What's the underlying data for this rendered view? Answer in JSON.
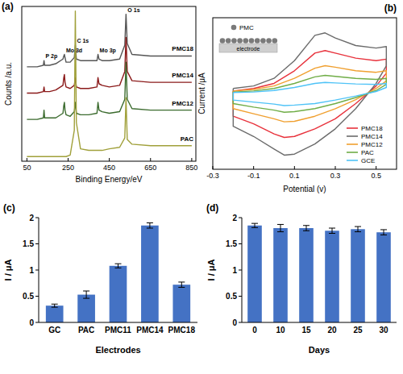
{
  "chart_data": [
    {
      "type": "line",
      "title": "(a)",
      "xlabel": "Binding Energy/eV",
      "ylabel": "Counts /a.u.",
      "x": [
        50,
        100,
        130,
        133,
        136,
        160,
        190,
        225,
        229,
        232,
        235,
        240,
        260,
        280,
        285,
        290,
        310,
        350,
        390,
        395,
        400,
        415,
        450,
        500,
        525,
        531,
        537,
        560,
        650,
        750,
        850
      ],
      "xlim": [
        25,
        870
      ],
      "xticks": [
        50,
        250,
        450,
        650,
        850
      ],
      "ylim": [
        0,
        100
      ],
      "yticks": [],
      "tick_labels": "x",
      "annotations": [
        {
          "text": "P 2p",
          "x": 133
        },
        {
          "text": "Mo 3d",
          "x": 232
        },
        {
          "text": "C 1s",
          "x": 285
        },
        {
          "text": "Mo 3p",
          "x": 395
        },
        {
          "text": "O 1s",
          "x": 531
        }
      ],
      "series": [
        {
          "name": "PMC18",
          "color": "#555555",
          "values": [
            61,
            61,
            62,
            65,
            62,
            62,
            63,
            66,
            68,
            69,
            67,
            64,
            64,
            67,
            75,
            66,
            65,
            65,
            65,
            69,
            66,
            65,
            65,
            66,
            75,
            95,
            76,
            69,
            68,
            68,
            68
          ]
        },
        {
          "name": "PMC14",
          "color": "#8b1a1a",
          "values": [
            44,
            44,
            45,
            48,
            45,
            45,
            46,
            49,
            54,
            56,
            51,
            48,
            47,
            49,
            54,
            48,
            47,
            47,
            48,
            54,
            50,
            49,
            48,
            49,
            58,
            80,
            58,
            52,
            51,
            51,
            51
          ]
        },
        {
          "name": "PMC12",
          "color": "#3b6b2e",
          "values": [
            27,
            27,
            28,
            33,
            28,
            28,
            28,
            31,
            36,
            38,
            33,
            30,
            29,
            32,
            38,
            31,
            30,
            30,
            31,
            38,
            33,
            32,
            31,
            32,
            40,
            64,
            40,
            34,
            33,
            33,
            33
          ]
        },
        {
          "name": "PAC",
          "color": "#a0a03a",
          "values": [
            3,
            3,
            3,
            3,
            3,
            3,
            3,
            3,
            3,
            3,
            3,
            3,
            4,
            20,
            97,
            25,
            8,
            7,
            7,
            7,
            7,
            7,
            8,
            9,
            15,
            41,
            14,
            11,
            10,
            10,
            10
          ]
        }
      ]
    },
    {
      "type": "line",
      "title": "(b)",
      "xlabel": "Potential (v)",
      "ylabel": "Current /μA",
      "x": [
        -0.2,
        -0.1,
        0,
        0.1,
        0.2,
        0.25,
        0.3,
        0.4,
        0.5,
        0.55,
        0.55,
        0.5,
        0.4,
        0.3,
        0.2,
        0.1,
        0.05,
        0,
        -0.1,
        -0.2,
        -0.2
      ],
      "xlim": [
        -0.3,
        0.6
      ],
      "xticks": [
        -0.3,
        -0.1,
        0.1,
        0.3,
        0.5
      ],
      "ylim": [
        -1.5,
        1.5
      ],
      "yticks": [],
      "tick_labels": "x",
      "legend": "lower right",
      "annotations": [
        "PMC",
        "electrode"
      ],
      "series": [
        {
          "name": "PMC18",
          "color": "#e8323c",
          "values": [
            0.05,
            0.1,
            0.2,
            0.45,
            0.8,
            0.85,
            0.8,
            0.7,
            0.65,
            0.68,
            0.4,
            0.15,
            -0.2,
            -0.5,
            -0.7,
            -0.85,
            -0.87,
            -0.8,
            -0.6,
            -0.45,
            0.05
          ]
        },
        {
          "name": "PMC14",
          "color": "#6b6b6b",
          "values": [
            0.1,
            0.15,
            0.3,
            0.65,
            1.15,
            1.2,
            1.1,
            0.95,
            0.9,
            0.93,
            0.55,
            0.2,
            -0.3,
            -0.7,
            -1.0,
            -1.2,
            -1.22,
            -1.1,
            -0.85,
            -0.65,
            0.1
          ]
        },
        {
          "name": "PMC12",
          "color": "#f0a030",
          "values": [
            0.05,
            0.08,
            0.15,
            0.3,
            0.5,
            0.55,
            0.52,
            0.45,
            0.42,
            0.45,
            0.25,
            0.1,
            -0.12,
            -0.3,
            -0.45,
            -0.55,
            -0.56,
            -0.5,
            -0.4,
            -0.3,
            0.05
          ]
        },
        {
          "name": "PAC",
          "color": "#70ad47",
          "values": [
            0.03,
            0.05,
            0.1,
            0.2,
            0.33,
            0.36,
            0.34,
            0.3,
            0.28,
            0.3,
            0.18,
            0.06,
            -0.08,
            -0.2,
            -0.3,
            -0.36,
            -0.37,
            -0.33,
            -0.27,
            -0.2,
            0.03
          ]
        },
        {
          "name": "GCE",
          "color": "#4fc3f7",
          "values": [
            0.02,
            0.03,
            0.06,
            0.12,
            0.2,
            0.22,
            0.21,
            0.19,
            0.18,
            0.2,
            0.12,
            0.04,
            -0.05,
            -0.13,
            -0.2,
            -0.23,
            -0.24,
            -0.21,
            -0.17,
            -0.13,
            0.02
          ]
        }
      ]
    },
    {
      "type": "bar",
      "title": "(c)",
      "xlabel": "Electrodes",
      "ylabel": "I / μA",
      "categories": [
        "GC",
        "PAC",
        "PMC11",
        "PMC14",
        "PMC18"
      ],
      "values": [
        0.32,
        0.53,
        1.08,
        1.85,
        0.72
      ],
      "errors": [
        0.03,
        0.07,
        0.04,
        0.05,
        0.05
      ],
      "color": "#4472c4",
      "ylim": [
        0,
        2
      ],
      "yticks": [
        0,
        0.5,
        1,
        1.5,
        2
      ]
    },
    {
      "type": "bar",
      "title": "(d)",
      "xlabel": "Days",
      "ylabel": "I / μA",
      "categories": [
        "0",
        "10",
        "15",
        "20",
        "25",
        "30"
      ],
      "values": [
        1.85,
        1.8,
        1.8,
        1.75,
        1.78,
        1.72
      ],
      "errors": [
        0.04,
        0.07,
        0.05,
        0.05,
        0.05,
        0.05
      ],
      "color": "#4472c4",
      "ylim": [
        0,
        2
      ],
      "yticks": [
        0,
        0.5,
        1,
        1.5,
        2
      ]
    }
  ]
}
